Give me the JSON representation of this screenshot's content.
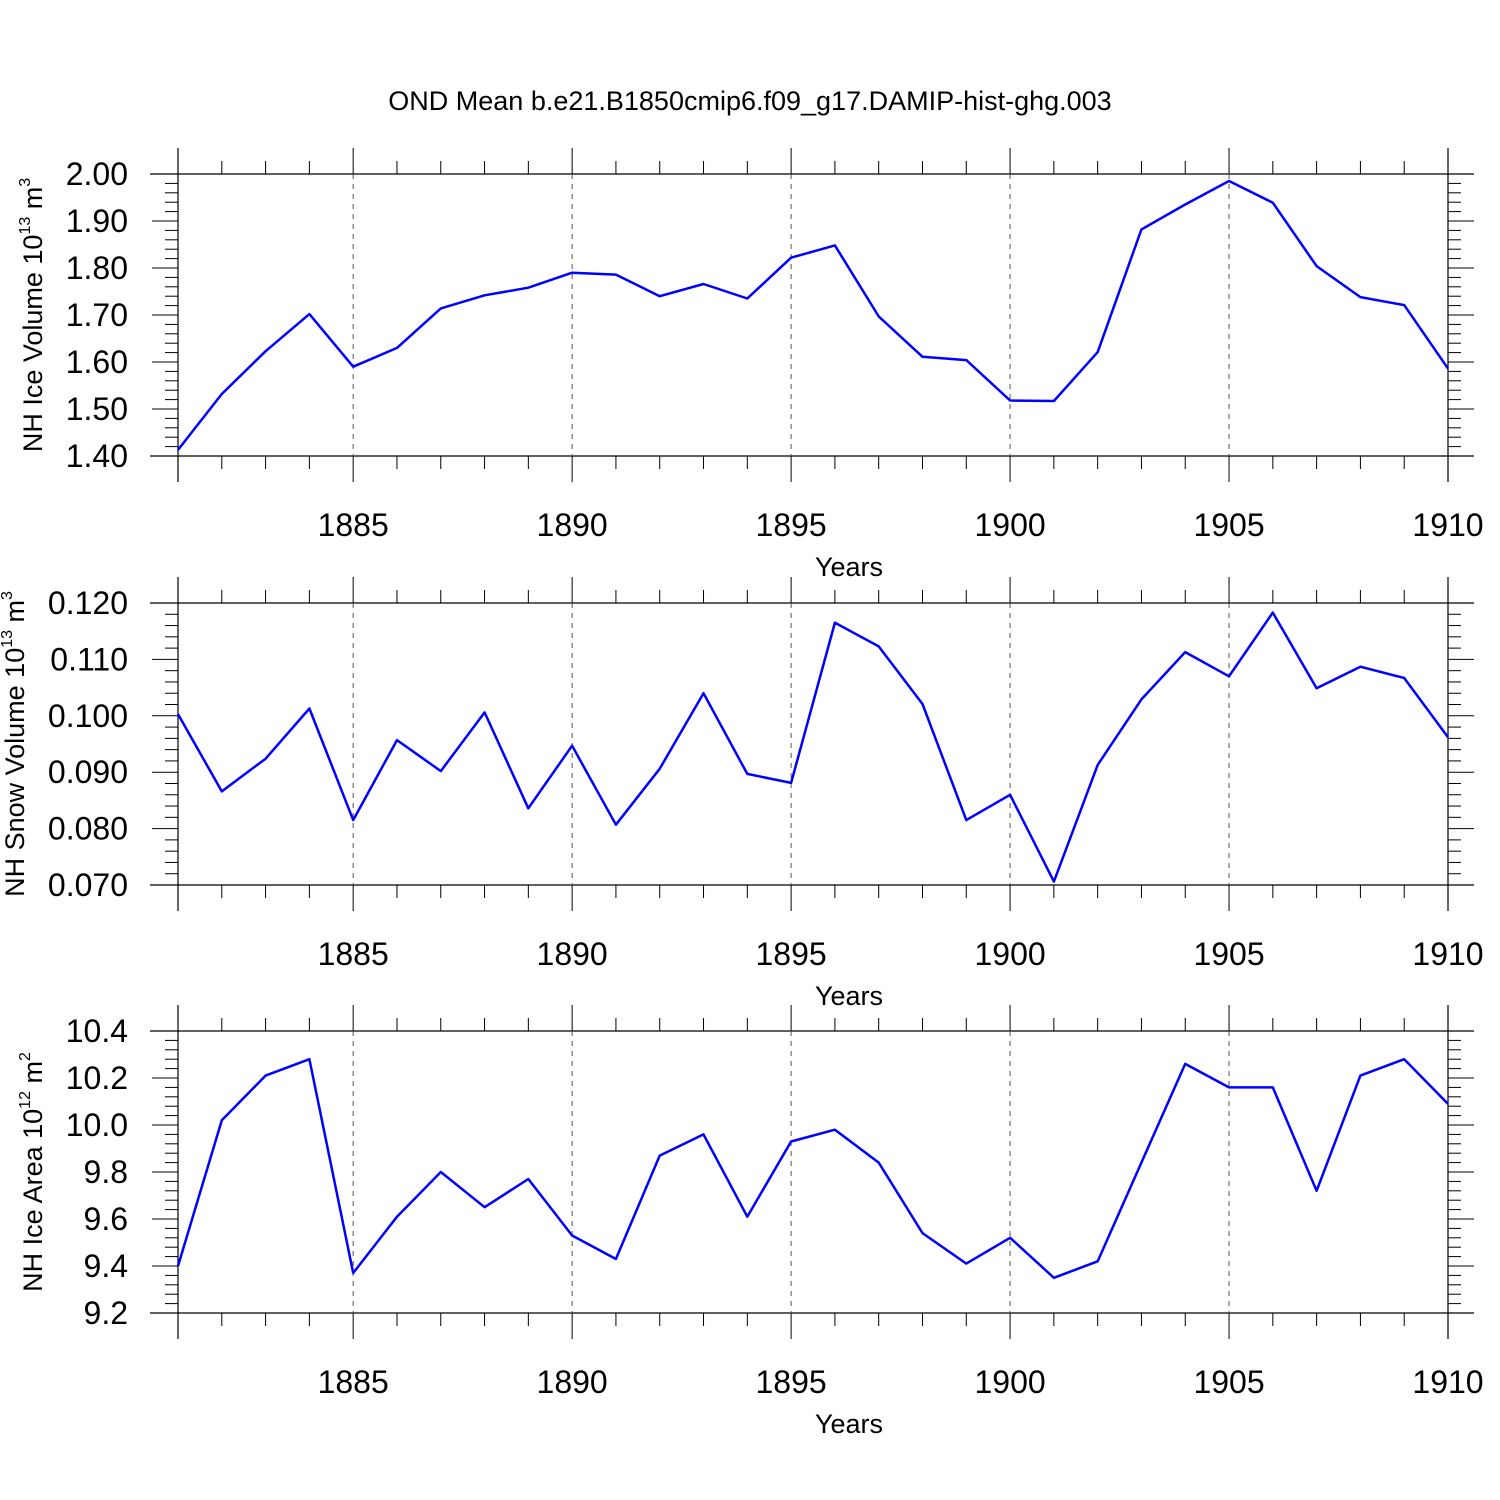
{
  "figure": {
    "title": "OND Mean b.e21.B1850cmip6.f09_g17.DAMIP-hist-ghg.003"
  },
  "colors": {
    "series": "#0000ff"
  },
  "chart_data": [
    {
      "type": "line",
      "ylabel": "NH Ice Volume 10",
      "ylabel_sup": "13",
      "ylabel_unit": " m",
      "ylabel_unit_sup": "3",
      "xlabel": "Years",
      "xlim": [
        1881,
        1910
      ],
      "ylim": [
        1.4,
        2.0
      ],
      "xticks": [
        1885,
        1890,
        1895,
        1900,
        1905,
        1910
      ],
      "xtick_labels": [
        "1885",
        "1890",
        "1895",
        "1900",
        "1905",
        "1910"
      ],
      "yticks": [
        1.4,
        1.5,
        1.6,
        1.7,
        1.8,
        1.9,
        2.0
      ],
      "ytick_labels": [
        "1.40",
        "1.50",
        "1.60",
        "1.70",
        "1.80",
        "1.90",
        "2.00"
      ],
      "grid": "vertical dashed at major x ticks",
      "x": [
        1881,
        1882,
        1883,
        1884,
        1885,
        1886,
        1887,
        1888,
        1889,
        1890,
        1891,
        1892,
        1893,
        1894,
        1895,
        1896,
        1897,
        1898,
        1899,
        1900,
        1901,
        1902,
        1903,
        1904,
        1905,
        1906,
        1907,
        1908,
        1909,
        1910
      ],
      "values": [
        1.413,
        1.532,
        1.623,
        1.702,
        1.59,
        1.63,
        1.714,
        1.742,
        1.758,
        1.79,
        1.786,
        1.74,
        1.766,
        1.735,
        1.822,
        1.848,
        1.697,
        1.611,
        1.604,
        1.518,
        1.517,
        1.621,
        1.882,
        1.935,
        1.985,
        1.939,
        1.804,
        1.738,
        1.721,
        1.586
      ]
    },
    {
      "type": "line",
      "ylabel": "NH Snow Volume 10",
      "ylabel_sup": "13",
      "ylabel_unit": " m",
      "ylabel_unit_sup": "3",
      "xlabel": "Years",
      "xlim": [
        1881,
        1910
      ],
      "ylim": [
        0.07,
        0.12
      ],
      "xticks": [
        1885,
        1890,
        1895,
        1900,
        1905,
        1910
      ],
      "xtick_labels": [
        "1885",
        "1890",
        "1895",
        "1900",
        "1905",
        "1910"
      ],
      "yticks": [
        0.07,
        0.08,
        0.09,
        0.1,
        0.11,
        0.12
      ],
      "ytick_labels": [
        "0.070",
        "0.080",
        "0.090",
        "0.100",
        "0.110",
        "0.120"
      ],
      "grid": "vertical dashed at major x ticks",
      "x": [
        1881,
        1882,
        1883,
        1884,
        1885,
        1886,
        1887,
        1888,
        1889,
        1890,
        1891,
        1892,
        1893,
        1894,
        1895,
        1896,
        1897,
        1898,
        1899,
        1900,
        1901,
        1902,
        1903,
        1904,
        1905,
        1906,
        1907,
        1908,
        1909,
        1910
      ],
      "values": [
        0.1003,
        0.0866,
        0.0924,
        0.1013,
        0.0815,
        0.0957,
        0.0902,
        0.1006,
        0.0836,
        0.0947,
        0.0807,
        0.0906,
        0.104,
        0.0897,
        0.0881,
        0.1165,
        0.1123,
        0.1021,
        0.0815,
        0.086,
        0.0706,
        0.0913,
        0.1029,
        0.1113,
        0.107,
        0.1183,
        0.1049,
        0.1087,
        0.1067,
        0.0962
      ]
    },
    {
      "type": "line",
      "ylabel": "NH Ice Area 10",
      "ylabel_sup": "12",
      "ylabel_unit": " m",
      "ylabel_unit_sup": "2",
      "xlabel": "Years",
      "xlim": [
        1881,
        1910
      ],
      "ylim": [
        9.2,
        10.4
      ],
      "xticks": [
        1885,
        1890,
        1895,
        1900,
        1905,
        1910
      ],
      "xtick_labels": [
        "1885",
        "1890",
        "1895",
        "1900",
        "1905",
        "1910"
      ],
      "yticks": [
        9.2,
        9.4,
        9.6,
        9.8,
        10.0,
        10.2,
        10.4
      ],
      "ytick_labels": [
        "9.2",
        "9.4",
        "9.6",
        "9.8",
        "10.0",
        "10.2",
        "10.4"
      ],
      "grid": "vertical dashed at major x ticks",
      "x": [
        1881,
        1882,
        1883,
        1884,
        1885,
        1886,
        1887,
        1888,
        1889,
        1890,
        1891,
        1892,
        1893,
        1894,
        1895,
        1896,
        1897,
        1898,
        1899,
        1900,
        1901,
        1902,
        1903,
        1904,
        1905,
        1906,
        1907,
        1908,
        1909,
        1910
      ],
      "values": [
        9.4,
        10.02,
        10.21,
        10.28,
        9.37,
        9.61,
        9.8,
        9.65,
        9.77,
        9.53,
        9.43,
        9.87,
        9.96,
        9.61,
        9.93,
        9.98,
        9.84,
        9.54,
        9.41,
        9.52,
        9.35,
        9.42,
        9.84,
        10.26,
        10.16,
        10.16,
        9.72,
        10.21,
        10.28,
        10.09
      ]
    }
  ]
}
